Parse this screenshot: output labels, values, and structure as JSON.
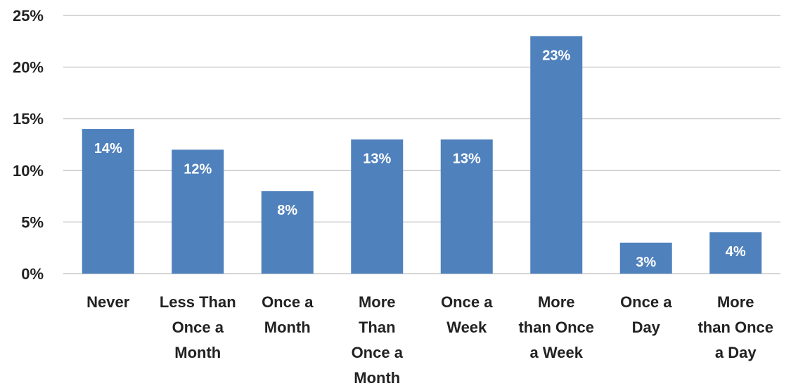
{
  "chart_data": {
    "type": "bar",
    "title": "",
    "xlabel": "",
    "ylabel": "",
    "categories": [
      [
        "Never"
      ],
      [
        "Less Than",
        "Once a",
        "Month"
      ],
      [
        "Once a",
        "Month"
      ],
      [
        "More",
        "Than",
        "Once a",
        "Month"
      ],
      [
        "Once a",
        "Week"
      ],
      [
        "More",
        "than Once",
        "a Week"
      ],
      [
        "Once a",
        "Day"
      ],
      [
        "More",
        "than Once",
        "a Day"
      ]
    ],
    "values": [
      14,
      12,
      8,
      13,
      13,
      23,
      3,
      4
    ],
    "data_labels": [
      "14%",
      "12%",
      "8%",
      "13%",
      "13%",
      "23%",
      "3%",
      "4%"
    ],
    "ylim": [
      0,
      25
    ],
    "y_ticks": [
      0,
      5,
      10,
      15,
      20,
      25
    ],
    "y_tick_labels": [
      "0%",
      "5%",
      "10%",
      "15%",
      "20%",
      "25%"
    ],
    "grid": true,
    "legend": "none",
    "colors": {
      "bar": "#4F81BD",
      "grid": "#BFBFBF",
      "text": "#222222",
      "data_label": "#FFFFFF"
    }
  }
}
